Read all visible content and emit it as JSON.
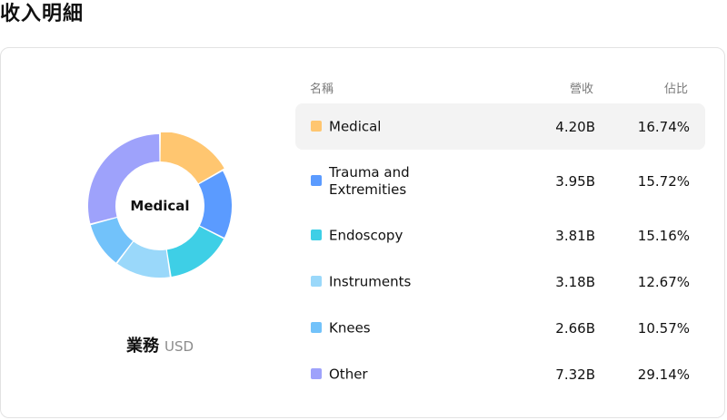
{
  "page": {
    "title": "收入明細"
  },
  "donut": {
    "center_label": "Medical"
  },
  "caption": {
    "main": "業務",
    "unit": "USD"
  },
  "table": {
    "headers": {
      "name": "名稱",
      "revenue": "營收",
      "share": "佔比"
    },
    "rows": [
      {
        "name": "Medical",
        "revenue": "4.20B",
        "share": "16.74%",
        "color": "#FFC670",
        "value": 16.74
      },
      {
        "name": "Trauma and Extremities",
        "revenue": "3.95B",
        "share": "15.72%",
        "color": "#5B9BFF",
        "value": 15.72
      },
      {
        "name": "Endoscopy",
        "revenue": "3.81B",
        "share": "15.16%",
        "color": "#3ECFE6",
        "value": 15.16
      },
      {
        "name": "Instruments",
        "revenue": "3.18B",
        "share": "12.67%",
        "color": "#9AD8FA",
        "value": 12.67
      },
      {
        "name": "Knees",
        "revenue": "2.66B",
        "share": "10.57%",
        "color": "#72C2FA",
        "value": 10.57
      },
      {
        "name": "Other",
        "revenue": "7.32B",
        "share": "29.14%",
        "color": "#9EA2FB",
        "value": 29.14
      }
    ]
  },
  "active_index": 0
}
